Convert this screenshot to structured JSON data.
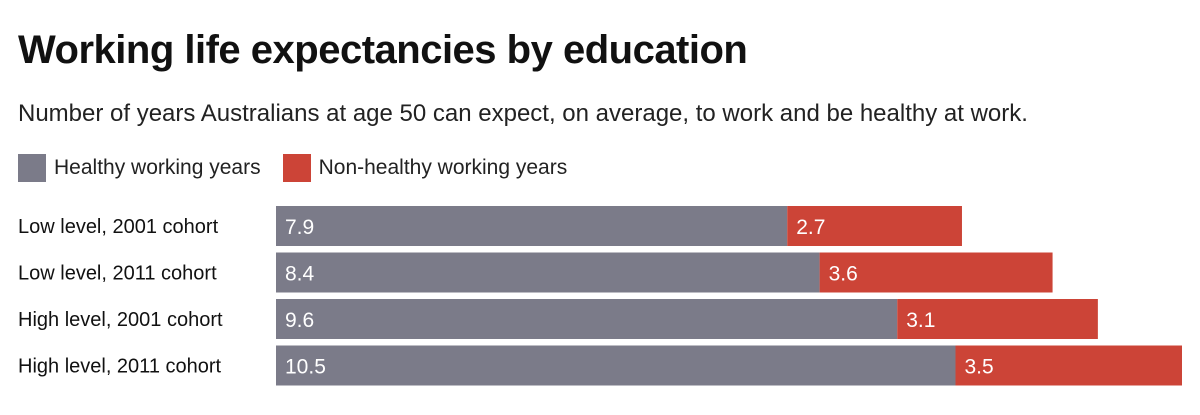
{
  "chart_data": {
    "type": "bar",
    "orientation": "horizontal",
    "stacked": true,
    "title": "Working life expectancies by education",
    "subtitle": "Number of years Australians at age 50 can expect, on average, to work and be healthy at work.",
    "legend_position": "top-left",
    "grid": false,
    "categories": [
      "Low level, 2001 cohort",
      "Low level, 2011 cohort",
      "High level, 2001 cohort",
      "High level, 2011 cohort"
    ],
    "series": [
      {
        "name": "Healthy working years",
        "values": [
          7.9,
          8.4,
          9.6,
          10.5
        ],
        "color": "#7b7b89"
      },
      {
        "name": "Non-healthy working years",
        "values": [
          2.7,
          3.6,
          3.1,
          3.5
        ],
        "color": "#cc4437"
      }
    ],
    "xlim": [
      0,
      14
    ]
  }
}
